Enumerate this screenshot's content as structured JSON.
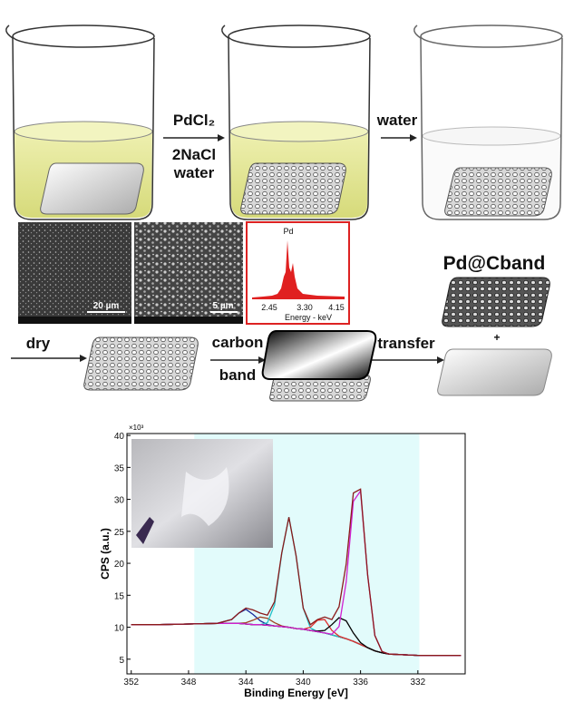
{
  "diagram": {
    "step1_reagents": [
      "PdCl₂",
      "2NaCl",
      "water"
    ],
    "step2_reagent": "water",
    "sem_scale_bars": [
      "20 µm",
      "5 µm"
    ],
    "edx": {
      "peak_label": "Pd",
      "ticks": [
        "2.45",
        "3.30",
        "4.15"
      ],
      "axis_label": "Energy - keV"
    },
    "product": "Pd@Cband",
    "dry": "dry",
    "carbon_band": [
      "carbon",
      "band"
    ],
    "transfer": "transfer",
    "plus": "+"
  },
  "chart_data": {
    "type": "line",
    "x_label": "Binding Energy [eV]",
    "y_label": "CPS (a.u.)",
    "y_multiplier": "×10³",
    "xlim": [
      352.3,
      328.7
    ],
    "ylim": [
      2.7,
      40.3
    ],
    "xticks": [
      352,
      348,
      344,
      340,
      336,
      332
    ],
    "yticks": [
      5,
      10,
      15,
      20,
      25,
      30,
      35,
      40
    ],
    "shaded_range": [
      347.6,
      331.9
    ],
    "shade_color": "#e2fbfb",
    "x": [
      352,
      350,
      348,
      346,
      345,
      344.5,
      344,
      343.5,
      343,
      342.5,
      342,
      341.5,
      341,
      340.5,
      340,
      339.5,
      339,
      338.5,
      338,
      337.5,
      337,
      336.5,
      336,
      335.5,
      335,
      334.5,
      334,
      332,
      330,
      329
    ],
    "series": [
      {
        "color": "#7a7a50",
        "values": [
          10.4,
          10.4,
          10.5,
          10.6,
          10.6,
          10.6,
          10.5,
          10.4,
          10.4,
          10.3,
          10.2,
          10.1,
          10.0,
          9.8,
          9.7,
          9.5,
          9.3,
          9.1,
          8.8,
          8.5,
          8.2,
          7.8,
          7.3,
          6.8,
          6.3,
          6.0,
          5.8,
          5.6,
          5.6,
          5.6
        ]
      },
      {
        "color": "#1a2a9a",
        "values": [
          10.4,
          10.4,
          10.5,
          10.6,
          11.2,
          12.2,
          12.8,
          12.0,
          11.0,
          10.4,
          10.2,
          10.1,
          10.0,
          9.8,
          9.7,
          9.5,
          9.3,
          9.1,
          8.8,
          8.5,
          8.2,
          7.8,
          7.3,
          6.8,
          6.3,
          6.0,
          5.8,
          5.6,
          5.6,
          5.6
        ]
      },
      {
        "color": "#a04020",
        "values": [
          10.4,
          10.4,
          10.5,
          10.6,
          10.6,
          10.6,
          10.7,
          11.1,
          11.6,
          11.4,
          10.7,
          10.2,
          10.0,
          9.8,
          9.7,
          9.5,
          9.3,
          9.1,
          8.8,
          8.5,
          8.2,
          7.8,
          7.3,
          6.8,
          6.3,
          6.0,
          5.8,
          5.6,
          5.6,
          5.6
        ]
      },
      {
        "color": "#20c0c8",
        "values": [
          10.4,
          10.4,
          10.5,
          10.6,
          10.6,
          10.6,
          10.5,
          10.4,
          10.4,
          10.7,
          13.5,
          21.5,
          27.2,
          21.2,
          13.0,
          9.9,
          9.3,
          9.1,
          8.8,
          8.5,
          8.2,
          7.8,
          7.3,
          6.8,
          6.3,
          6.0,
          5.8,
          5.6,
          5.6,
          5.6
        ]
      },
      {
        "color": "#e03030",
        "values": [
          10.4,
          10.4,
          10.5,
          10.6,
          10.6,
          10.6,
          10.5,
          10.4,
          10.4,
          10.3,
          10.2,
          10.1,
          10.0,
          9.8,
          9.7,
          10.0,
          11.1,
          11.2,
          9.5,
          8.6,
          8.2,
          7.8,
          7.3,
          6.8,
          6.3,
          6.0,
          5.8,
          5.6,
          5.6,
          5.6
        ]
      },
      {
        "color": "#000000",
        "values": [
          10.4,
          10.4,
          10.5,
          10.6,
          10.6,
          10.6,
          10.5,
          10.4,
          10.4,
          10.3,
          10.2,
          10.1,
          10.0,
          9.8,
          9.7,
          9.5,
          9.4,
          9.5,
          10.4,
          11.5,
          11.0,
          9.1,
          7.6,
          6.8,
          6.3,
          6.0,
          5.8,
          5.6,
          5.6,
          5.6
        ]
      },
      {
        "color": "#d020d0",
        "values": [
          10.4,
          10.4,
          10.5,
          10.6,
          10.6,
          10.6,
          10.5,
          10.4,
          10.4,
          10.3,
          10.2,
          10.1,
          10.0,
          9.8,
          9.7,
          9.5,
          9.3,
          9.1,
          8.9,
          10.1,
          17.1,
          29.7,
          31.3,
          18.1,
          8.7,
          6.2,
          5.8,
          5.6,
          5.6,
          5.6
        ]
      },
      {
        "color": "#8b1a1a",
        "values": [
          10.4,
          10.4,
          10.5,
          10.6,
          11.2,
          12.2,
          13.0,
          12.7,
          12.2,
          11.9,
          14.0,
          21.6,
          27.2,
          21.2,
          13.0,
          10.4,
          11.2,
          11.6,
          11.2,
          13.2,
          19.9,
          31.0,
          31.6,
          18.1,
          8.7,
          6.2,
          5.8,
          5.6,
          5.6,
          5.6
        ]
      }
    ]
  }
}
